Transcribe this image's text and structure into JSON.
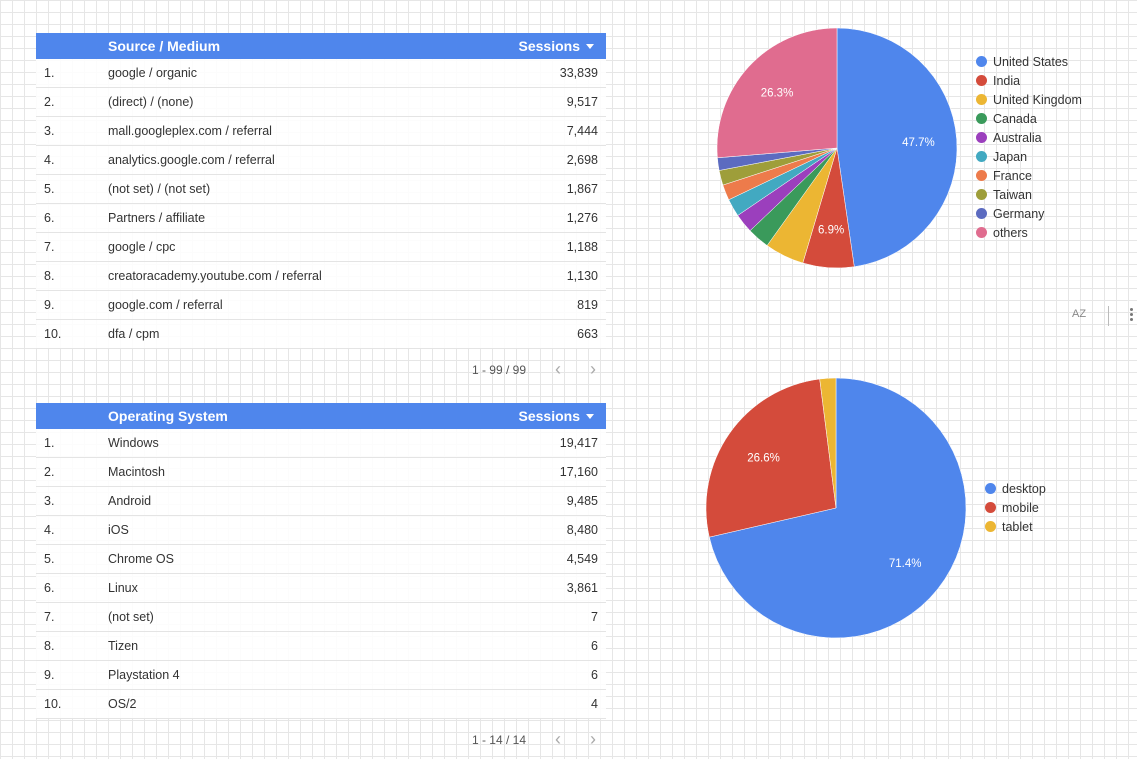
{
  "source_table": {
    "dimension_header": "Source / Medium",
    "metric_header": "Sessions",
    "rows": [
      {
        "idx": "1.",
        "dim": "google / organic",
        "val": "33,839"
      },
      {
        "idx": "2.",
        "dim": "(direct) / (none)",
        "val": "9,517"
      },
      {
        "idx": "3.",
        "dim": "mall.googleplex.com / referral",
        "val": "7,444"
      },
      {
        "idx": "4.",
        "dim": "analytics.google.com / referral",
        "val": "2,698"
      },
      {
        "idx": "5.",
        "dim": "(not set) / (not set)",
        "val": "1,867"
      },
      {
        "idx": "6.",
        "dim": "Partners / affiliate",
        "val": "1,276"
      },
      {
        "idx": "7.",
        "dim": "google / cpc",
        "val": "1,188"
      },
      {
        "idx": "8.",
        "dim": "creatoracademy.youtube.com / referral",
        "val": "1,130"
      },
      {
        "idx": "9.",
        "dim": "google.com / referral",
        "val": "819"
      },
      {
        "idx": "10.",
        "dim": "dfa / cpm",
        "val": "663"
      }
    ],
    "pagination": "1 - 99 / 99"
  },
  "os_table": {
    "dimension_header": "Operating System",
    "metric_header": "Sessions",
    "rows": [
      {
        "idx": "1.",
        "dim": "Windows",
        "val": "19,417"
      },
      {
        "idx": "2.",
        "dim": "Macintosh",
        "val": "17,160"
      },
      {
        "idx": "3.",
        "dim": "Android",
        "val": "9,485"
      },
      {
        "idx": "4.",
        "dim": "iOS",
        "val": "8,480"
      },
      {
        "idx": "5.",
        "dim": "Chrome OS",
        "val": "4,549"
      },
      {
        "idx": "6.",
        "dim": "Linux",
        "val": "3,861"
      },
      {
        "idx": "7.",
        "dim": "(not set)",
        "val": "7"
      },
      {
        "idx": "8.",
        "dim": "Tizen",
        "val": "6"
      },
      {
        "idx": "9.",
        "dim": "Playstation 4",
        "val": "6"
      },
      {
        "idx": "10.",
        "dim": "OS/2",
        "val": "4"
      }
    ],
    "pagination": "1 - 14 / 14"
  },
  "chart_data": [
    {
      "type": "pie",
      "title": "",
      "legend_position": "right",
      "slices": [
        {
          "label": "United States",
          "value": 47.7,
          "color": "#4f86ec",
          "show_label": true
        },
        {
          "label": "India",
          "value": 6.9,
          "color": "#d44b3b",
          "show_label": true
        },
        {
          "label": "United Kingdom",
          "value": 5.3,
          "color": "#ecb633",
          "show_label": false
        },
        {
          "label": "Canada",
          "value": 3.0,
          "color": "#3a9a5b",
          "show_label": false
        },
        {
          "label": "Australia",
          "value": 2.6,
          "color": "#9b3fbd",
          "show_label": false
        },
        {
          "label": "Japan",
          "value": 2.4,
          "color": "#42a9c1",
          "show_label": false
        },
        {
          "label": "France",
          "value": 2.1,
          "color": "#ed7b4b",
          "show_label": false
        },
        {
          "label": "Taiwan",
          "value": 2.0,
          "color": "#9e9e3a",
          "show_label": false
        },
        {
          "label": "Germany",
          "value": 1.7,
          "color": "#5c6bc0",
          "show_label": false
        },
        {
          "label": "others",
          "value": 26.3,
          "color": "#e06c8f",
          "show_label": true
        }
      ]
    },
    {
      "type": "pie",
      "title": "",
      "legend_position": "right",
      "slices": [
        {
          "label": "desktop",
          "value": 71.4,
          "color": "#4f86ec",
          "show_label": true
        },
        {
          "label": "mobile",
          "value": 26.6,
          "color": "#d44b3b",
          "show_label": true
        },
        {
          "label": "tablet",
          "value": 2.0,
          "color": "#ecb633",
          "show_label": false
        }
      ]
    }
  ],
  "toolbar": {
    "sort_az_label": "AZ",
    "sort_icon": "sort-az-icon",
    "more_icon": "more-vert-icon",
    "prev_icon": "chevron-left-icon",
    "next_icon": "chevron-right-icon"
  }
}
